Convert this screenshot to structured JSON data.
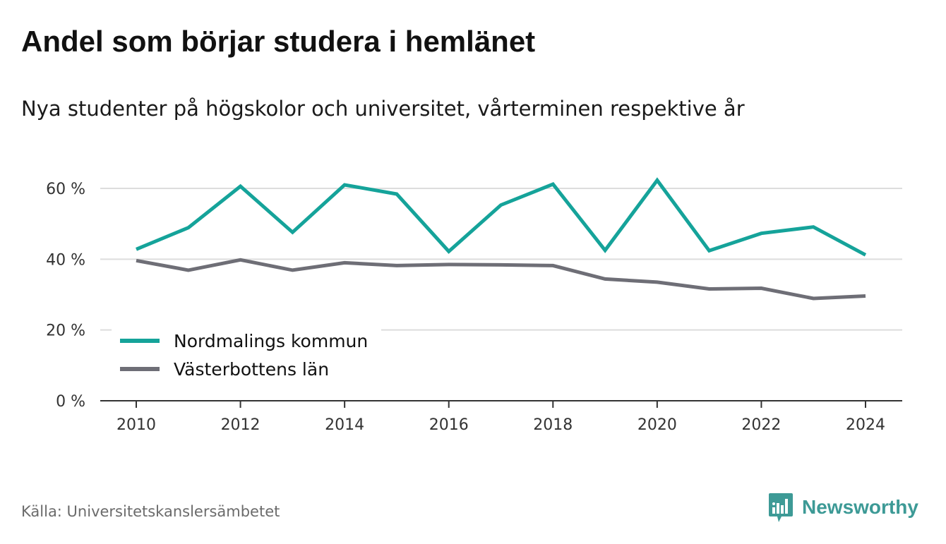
{
  "title": "Andel som börjar studera i hemlänet",
  "subtitle": "Nya studenter på högskolor och universitet, vårterminen respektive år",
  "source": "Källa: Universitetskanslersämbetet",
  "brand": {
    "name": "Newsworthy",
    "icon": "newsworthy-logo-icon",
    "color": "#3d9a96"
  },
  "colors": {
    "grid": "#dddddd",
    "axis": "#333333"
  },
  "chart_data": {
    "type": "line",
    "title": "Andel som börjar studera i hemlänet",
    "subtitle": "Nya studenter på högskolor och universitet, vårterminen respektive år",
    "x": [
      2010,
      2011,
      2012,
      2013,
      2014,
      2015,
      2016,
      2017,
      2018,
      2019,
      2020,
      2021,
      2022,
      2023,
      2024
    ],
    "xticks": [
      "2010",
      "2012",
      "2014",
      "2016",
      "2018",
      "2020",
      "2022",
      "2024"
    ],
    "xlim": [
      2010,
      2024
    ],
    "ylim": [
      0,
      60
    ],
    "yticks": [
      0,
      20,
      40,
      60
    ],
    "ytick_labels": [
      "0 %",
      "20 %",
      "40 %",
      "60 %"
    ],
    "grid": true,
    "legend_position": "bottom-left",
    "series": [
      {
        "name": "Nordmalings kommun",
        "color": "#15a39a",
        "values": [
          42.8,
          48.9,
          60.6,
          47.6,
          61.0,
          58.4,
          42.2,
          55.3,
          61.2,
          42.5,
          62.3,
          42.4,
          47.3,
          49.1,
          41.2
        ]
      },
      {
        "name": "Västerbottens län",
        "color": "#6e6e76",
        "values": [
          39.6,
          36.9,
          39.8,
          36.9,
          39.0,
          38.2,
          38.5,
          38.4,
          38.2,
          34.4,
          33.5,
          31.6,
          31.8,
          28.9,
          29.6
        ]
      }
    ]
  }
}
